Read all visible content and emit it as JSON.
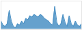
{
  "chart_data": {
    "type": "area",
    "x": [
      0,
      1,
      2,
      3,
      4,
      5,
      6,
      7,
      8,
      9,
      10,
      11,
      12,
      13,
      14,
      15,
      16,
      17,
      18,
      19,
      20,
      21,
      22,
      23,
      24,
      25,
      26,
      27,
      28,
      29,
      30,
      31,
      32,
      33,
      34,
      35,
      36,
      37,
      38,
      39
    ],
    "values": [
      0.3,
      0.15,
      0.1,
      0.2,
      0.7,
      0.3,
      0.1,
      0.05,
      0.2,
      0.15,
      0.3,
      0.2,
      0.4,
      0.35,
      0.5,
      0.45,
      0.55,
      0.5,
      0.45,
      0.55,
      0.5,
      0.4,
      0.35,
      0.3,
      0.2,
      0.15,
      0.85,
      0.25,
      0.1,
      0.2,
      0.55,
      0.25,
      0.1,
      0.5,
      0.2,
      0.1,
      0.3,
      0.15,
      0.1,
      0.2
    ],
    "color": "#4a90c4",
    "xlim": [
      0,
      39
    ],
    "ylim": [
      -0.02,
      1.05
    ],
    "tick_labels": false
  }
}
